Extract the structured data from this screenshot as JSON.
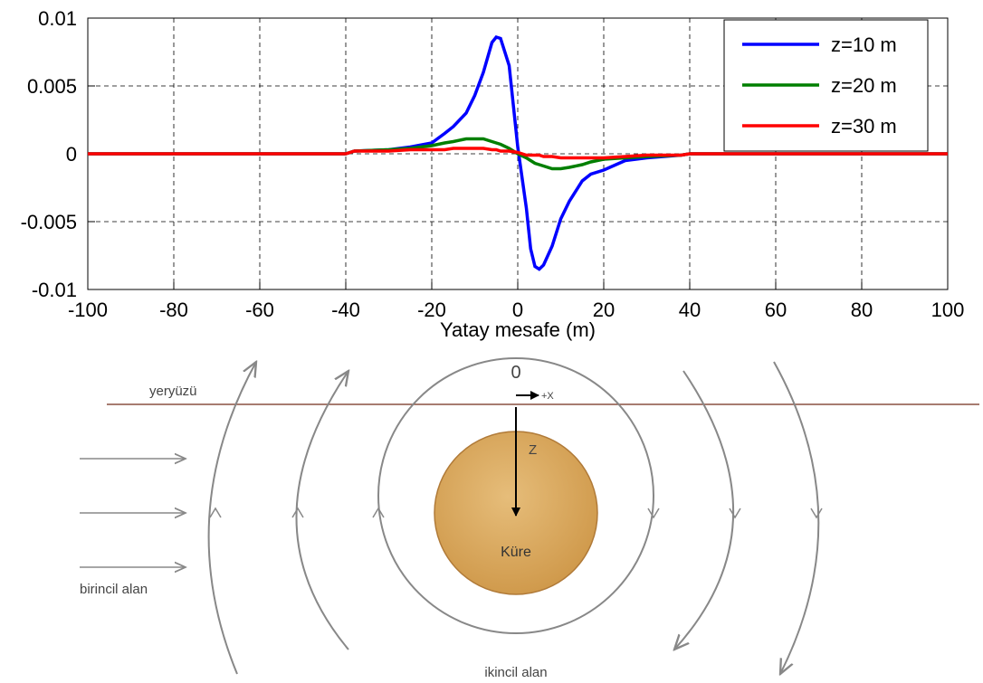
{
  "chart_data": {
    "type": "line",
    "xlabel": "Yatay mesafe (m)",
    "x": [
      -100,
      -40,
      -38,
      -30,
      -25,
      -20,
      -17,
      -15,
      -12,
      -10,
      -8,
      -6,
      -5,
      -4,
      -2,
      0,
      2,
      3,
      4,
      5,
      6,
      8,
      10,
      12,
      15,
      17,
      20,
      25,
      30,
      38,
      40,
      100
    ],
    "series": [
      {
        "name": "z=10 m",
        "color": "#0000ff",
        "values": [
          0,
          0,
          0.0002,
          0.0003,
          0.0005,
          0.0008,
          0.0015,
          0.002,
          0.003,
          0.0043,
          0.006,
          0.0082,
          0.0086,
          0.0085,
          0.0065,
          0.0005,
          -0.004,
          -0.007,
          -0.0083,
          -0.0085,
          -0.0082,
          -0.0068,
          -0.0048,
          -0.0035,
          -0.002,
          -0.0015,
          -0.0012,
          -0.0005,
          -0.0003,
          -0.0001,
          0,
          0
        ]
      },
      {
        "name": "z=20 m",
        "color": "#007f00",
        "values": [
          0,
          0,
          0.0002,
          0.0003,
          0.0004,
          0.0006,
          0.0008,
          0.0009,
          0.0011,
          0.0011,
          0.0011,
          0.0009,
          0.0008,
          0.0007,
          0.0004,
          0,
          -0.0003,
          -0.0005,
          -0.0007,
          -0.0008,
          -0.0009,
          -0.0011,
          -0.0011,
          -0.001,
          -0.0008,
          -0.0006,
          -0.0004,
          -0.0003,
          -0.0002,
          -0.0001,
          0,
          0
        ]
      },
      {
        "name": "z=30 m",
        "color": "#ff0000",
        "values": [
          0,
          0,
          0.0002,
          0.0002,
          0.0003,
          0.0003,
          0.0003,
          0.0004,
          0.0004,
          0.0004,
          0.0004,
          0.0003,
          0.0003,
          0.0002,
          0.0002,
          0.0001,
          -0.0001,
          -0.0001,
          -0.0001,
          -0.0001,
          -0.0002,
          -0.0002,
          -0.0003,
          -0.0003,
          -0.0003,
          -0.0003,
          -0.0003,
          -0.0002,
          -0.0001,
          -0.0001,
          0,
          0
        ]
      }
    ],
    "xlim": [
      -100,
      100
    ],
    "xticks": [
      -100,
      -80,
      -60,
      -40,
      -20,
      0,
      20,
      40,
      60,
      80,
      100
    ],
    "ylim": [
      -0.01,
      0.01
    ],
    "yticks": [
      -0.01,
      -0.005,
      0,
      0.005,
      0.01
    ],
    "grid": true,
    "legend": "upper right"
  },
  "diagram": {
    "surface": "yeryüzü",
    "origin": "0",
    "x_axis": "+X",
    "z_axis": "Z",
    "sphere": "Küre",
    "primary_field": "birincil alan",
    "secondary_field": "ikincil alan"
  }
}
